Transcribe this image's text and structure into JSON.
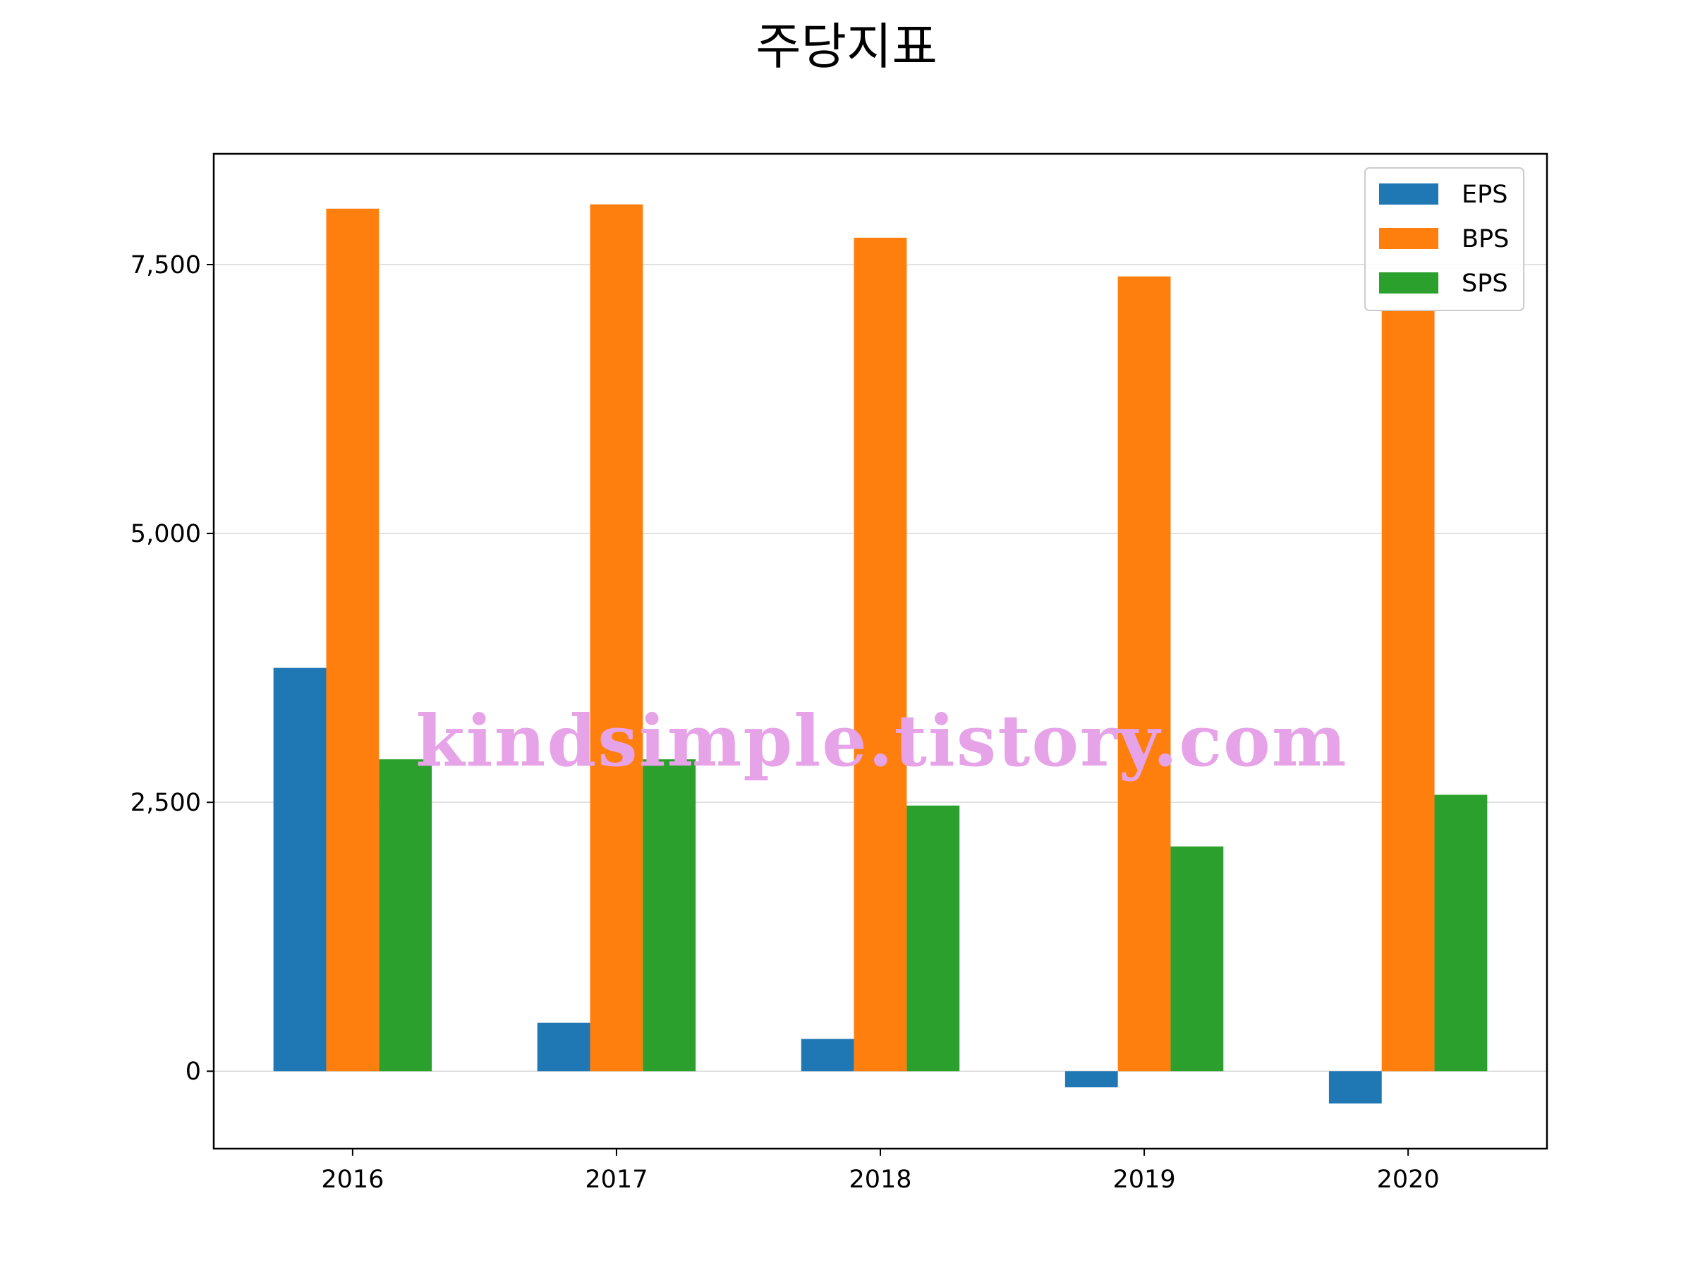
{
  "chart_data": {
    "type": "bar",
    "title": "주당지표",
    "xlabel": "",
    "ylabel": "",
    "categories": [
      "2016",
      "2017",
      "2018",
      "2019",
      "2020"
    ],
    "series": [
      {
        "name": "EPS",
        "color": "#1f77b4",
        "values": [
          3750,
          450,
          300,
          -150,
          -300
        ]
      },
      {
        "name": "BPS",
        "color": "#ff7f0e",
        "values": [
          8020,
          8060,
          7750,
          7390,
          7070
        ]
      },
      {
        "name": "SPS",
        "color": "#2ca02c",
        "values": [
          2900,
          2900,
          2470,
          2090,
          2570
        ]
      }
    ],
    "ylim": [
      -720,
      8530
    ],
    "yticks": [
      0,
      2500,
      5000,
      7500
    ],
    "ytick_labels": [
      "0",
      "2,500",
      "5,000",
      "7,500"
    ],
    "grid": "horizontal",
    "legend": "top-right"
  },
  "watermark": "kindsimple.tistory.com"
}
